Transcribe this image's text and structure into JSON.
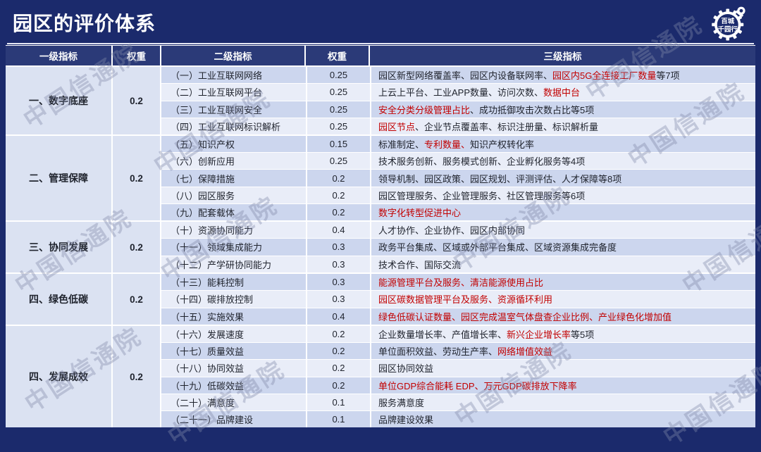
{
  "title": "园区的评价体系",
  "watermark": {
    "text": "中国信通院"
  },
  "logo": {
    "line1": "百城",
    "line2": "千园行"
  },
  "colors": {
    "page_bg": "#1b2a6c",
    "header_bg": "#2b3a78",
    "stripe_dark": "#ccd6ee",
    "stripe_light": "#e9edf8",
    "merged_cell_bg": "#dbe2f2",
    "red_text": "#c20000",
    "dark_text": "#20242e",
    "divider": "#ffffff"
  },
  "table": {
    "headers": [
      "一级指标",
      "权重",
      "二级指标",
      "权重",
      "三级指标"
    ],
    "sections": [
      {
        "name": "一、数字底座",
        "weight": "0.2",
        "rows": [
          {
            "l2": "（一）工业互联网网络",
            "w": "0.25",
            "l3": [
              {
                "t": "园区新型网络覆盖率、园区内设备联网率、"
              },
              {
                "t": "园区内5G全连接工厂数量",
                "red": true
              },
              {
                "t": "等7项"
              }
            ]
          },
          {
            "l2": "（二）工业互联网平台",
            "w": "0.25",
            "l3": [
              {
                "t": "上云上平台、工业APP数量、访问次数、"
              },
              {
                "t": "数据中台",
                "red": true
              }
            ]
          },
          {
            "l2": "（三）工业互联网安全",
            "w": "0.25",
            "l3": [
              {
                "t": "安全分类分级管理占比",
                "red": true
              },
              {
                "t": "、成功抵御攻击次数占比等5项"
              }
            ]
          },
          {
            "l2": "（四）工业互联网标识解析",
            "w": "0.25",
            "l3": [
              {
                "t": "园区节点",
                "red": true
              },
              {
                "t": "、企业节点覆盖率、标识注册量、标识解析量"
              }
            ]
          }
        ]
      },
      {
        "name": "二、管理保障",
        "weight": "0.2",
        "rows": [
          {
            "l2": "（五）知识产权",
            "w": "0.15",
            "l3": [
              {
                "t": "标准制定、"
              },
              {
                "t": "专利数量、",
                "red": true
              },
              {
                "t": "知识产权转化率"
              }
            ]
          },
          {
            "l2": "（六）创新应用",
            "w": "0.25",
            "l3": [
              {
                "t": "技术服务创新、服务模式创新、企业孵化服务等4项"
              }
            ]
          },
          {
            "l2": "（七）保障措施",
            "w": "0.2",
            "l3": [
              {
                "t": "领导机制、园区政策、园区规划、评测评估、人才保障等8项"
              }
            ]
          },
          {
            "l2": "（八）园区服务",
            "w": "0.2",
            "l3": [
              {
                "t": "园区管理服务、企业管理服务、社区管理服务等6项"
              }
            ]
          },
          {
            "l2": "（九）配套载体",
            "w": "0.2",
            "l3": [
              {
                "t": "数字化转型促进中心",
                "red": true
              }
            ]
          }
        ]
      },
      {
        "name": "三、协同发展",
        "weight": "0.2",
        "rows": [
          {
            "l2": "（十）资源协同能力",
            "w": "0.4",
            "l3": [
              {
                "t": "人才协作、企业协作、园区内部协同"
              }
            ]
          },
          {
            "l2": "（十一）领域集成能力",
            "w": "0.3",
            "l3": [
              {
                "t": "政务平台集成、区域或外部平台集成、区域资源集成完备度"
              }
            ]
          },
          {
            "l2": "（十二）产学研协同能力",
            "w": "0.3",
            "l3": [
              {
                "t": "技术合作、国际交流"
              }
            ]
          }
        ]
      },
      {
        "name": "四、绿色低碳",
        "weight": "0.2",
        "rows": [
          {
            "l2": "（十三）能耗控制",
            "w": "0.3",
            "l3": [
              {
                "t": "能源管理平台及服务、清洁能源使用占比",
                "red": true
              }
            ]
          },
          {
            "l2": "（十四）碳排放控制",
            "w": "0.3",
            "l3": [
              {
                "t": "园区碳数据管理平台及服务、资源循环利用",
                "red": true
              }
            ]
          },
          {
            "l2": "（十五）实施效果",
            "w": "0.4",
            "l3": [
              {
                "t": "绿色低碳认证数量、园区完成温室气体盘查企业比例、产业绿色化增加值",
                "red": true
              }
            ]
          }
        ]
      },
      {
        "name": "四、发展成效",
        "weight": "0.2",
        "rows": [
          {
            "l2": "（十六）发展速度",
            "w": "0.2",
            "l3": [
              {
                "t": "企业数量增长率、产值增长率、"
              },
              {
                "t": "新兴企业增长率",
                "red": true
              },
              {
                "t": "等5项"
              }
            ]
          },
          {
            "l2": "（十七）质量效益",
            "w": "0.2",
            "l3": [
              {
                "t": "单位面积效益、劳动生产率、"
              },
              {
                "t": "网络增值效益",
                "red": true
              }
            ]
          },
          {
            "l2": "（十八）协同效益",
            "w": "0.2",
            "l3": [
              {
                "t": "园区协同效益"
              }
            ]
          },
          {
            "l2": "（十九）低碳效益",
            "w": "0.2",
            "l3": [
              {
                "t": "单位GDP综合能耗 EDP、万元GDP碳排放下降率",
                "red": true
              }
            ]
          },
          {
            "l2": "（二十）满意度",
            "w": "0.1",
            "l3": [
              {
                "t": "服务满意度"
              }
            ]
          },
          {
            "l2": "（二十一）品牌建设",
            "w": "0.1",
            "l3": [
              {
                "t": "品牌建设效果"
              }
            ]
          }
        ]
      }
    ]
  }
}
